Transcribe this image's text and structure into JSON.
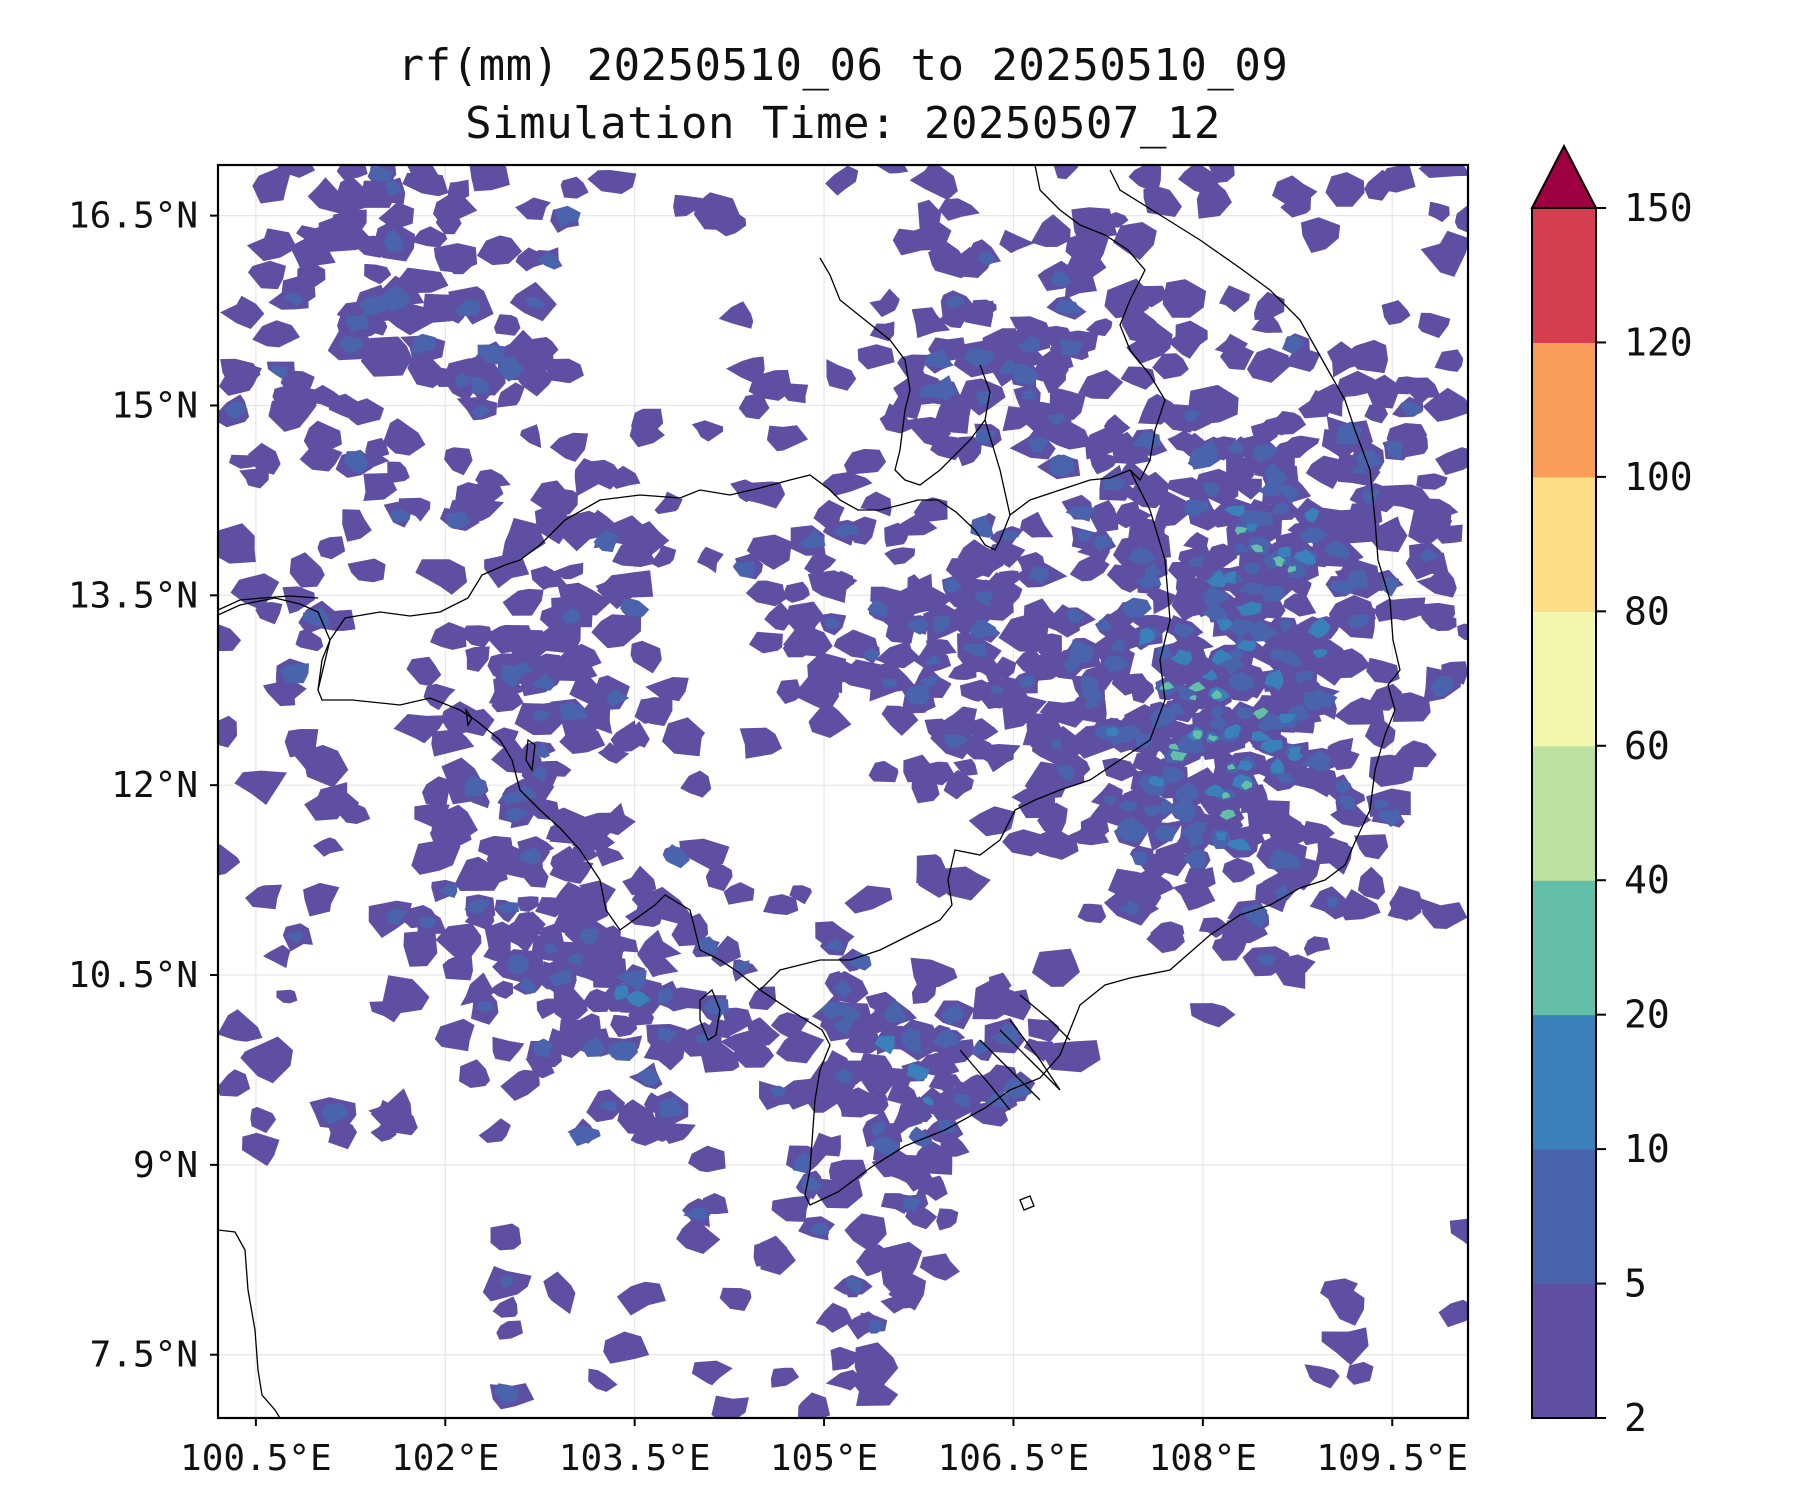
{
  "title": {
    "line1": "rf(mm) 20250510_06 to 20250510_09",
    "line2": "Simulation Time: 20250507_12"
  },
  "map": {
    "lon_range": [
      100.2,
      110.1
    ],
    "lat_range": [
      7.0,
      16.9
    ],
    "lon_ticks": [
      {
        "value": 100.5,
        "label": "100.5°E"
      },
      {
        "value": 102.0,
        "label": "102°E"
      },
      {
        "value": 103.5,
        "label": "103.5°E"
      },
      {
        "value": 105.0,
        "label": "105°E"
      },
      {
        "value": 106.5,
        "label": "106.5°E"
      },
      {
        "value": 108.0,
        "label": "108°E"
      },
      {
        "value": 109.5,
        "label": "109.5°E"
      }
    ],
    "lat_ticks": [
      {
        "value": 16.5,
        "label": "16.5°N"
      },
      {
        "value": 15.0,
        "label": "15°N"
      },
      {
        "value": 13.5,
        "label": "13.5°N"
      },
      {
        "value": 12.0,
        "label": "12°N"
      },
      {
        "value": 10.5,
        "label": "10.5°N"
      },
      {
        "value": 9.0,
        "label": "9°N"
      },
      {
        "value": 7.5,
        "label": "7.5°N"
      }
    ],
    "gridlines": true,
    "rain_color_dominant": "#5e4fa2",
    "rain_color_10": "#3288bd",
    "rain_color_high": "#66c2a5"
  },
  "colorbar": {
    "levels": [
      "2",
      "5",
      "10",
      "20",
      "40",
      "60",
      "80",
      "100",
      "120",
      "150"
    ],
    "colors": [
      "#5e4fa2",
      "#4a63ad",
      "#3a80ba",
      "#63bfa7",
      "#bde1a0",
      "#f2f7ad",
      "#fbdc87",
      "#f99d5a",
      "#d53e4f"
    ],
    "extend_color": "#9e0142"
  }
}
